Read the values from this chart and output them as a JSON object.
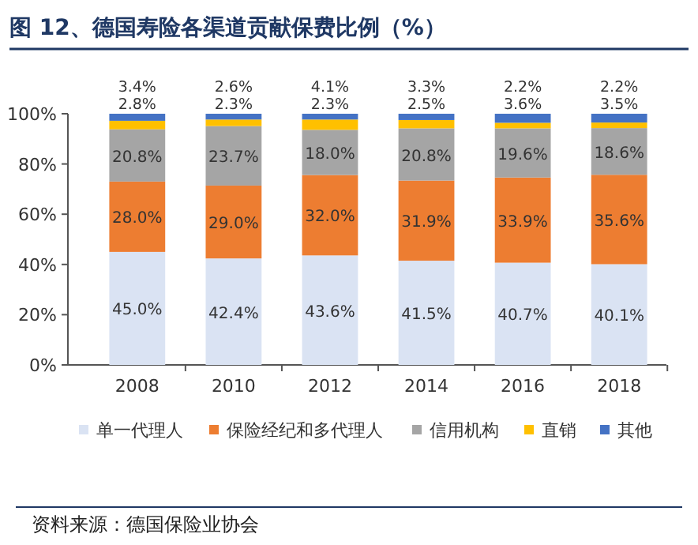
{
  "chart_data": {
    "type": "bar",
    "stacked": true,
    "title": "图 12、德国寿险各渠道贡献保费比例（%）",
    "categories": [
      "2008",
      "2010",
      "2012",
      "2014",
      "2016",
      "2018"
    ],
    "series": [
      {
        "name": "单一代理人",
        "color": "#dae3f3",
        "values": [
          45.0,
          42.4,
          43.6,
          41.5,
          40.7,
          40.1
        ],
        "value_labels": [
          "45.0%",
          "42.4%",
          "43.6%",
          "41.5%",
          "40.7%",
          "40.1%"
        ]
      },
      {
        "name": "保险经纪和多代理人",
        "color": "#ed7d31",
        "values": [
          28.0,
          29.0,
          32.0,
          31.9,
          33.9,
          35.6
        ],
        "value_labels": [
          "28.0%",
          "29.0%",
          "32.0%",
          "31.9%",
          "33.9%",
          "35.6%"
        ]
      },
      {
        "name": "信用机构",
        "color": "#a5a5a5",
        "values": [
          20.8,
          23.7,
          18.0,
          20.8,
          19.6,
          18.6
        ],
        "value_labels": [
          "20.8%",
          "23.7%",
          "18.0%",
          "20.8%",
          "19.6%",
          "18.6%"
        ]
      },
      {
        "name": "直销",
        "color": "#ffc000",
        "values": [
          3.4,
          2.6,
          4.1,
          3.3,
          2.2,
          2.2
        ],
        "value_labels": [
          "3.4%",
          "2.6%",
          "4.1%",
          "3.3%",
          "2.2%",
          "2.2%"
        ]
      },
      {
        "name": "其他",
        "color": "#4472c4",
        "values": [
          2.8,
          2.3,
          2.3,
          2.5,
          3.6,
          3.5
        ],
        "value_labels": [
          "2.8%",
          "2.3%",
          "2.3%",
          "2.5%",
          "3.6%",
          "3.5%"
        ]
      }
    ],
    "ylim": [
      0,
      100
    ],
    "yticks": [
      {
        "value": 0,
        "label": "0%"
      },
      {
        "value": 20,
        "label": "20%"
      },
      {
        "value": 40,
        "label": "40%"
      },
      {
        "value": 60,
        "label": "60%"
      },
      {
        "value": 80,
        "label": "80%"
      },
      {
        "value": 100,
        "label": "100%"
      }
    ],
    "grid": false,
    "legend": "bottom",
    "annotations": [
      "资料来源：德国保险业协会"
    ]
  }
}
